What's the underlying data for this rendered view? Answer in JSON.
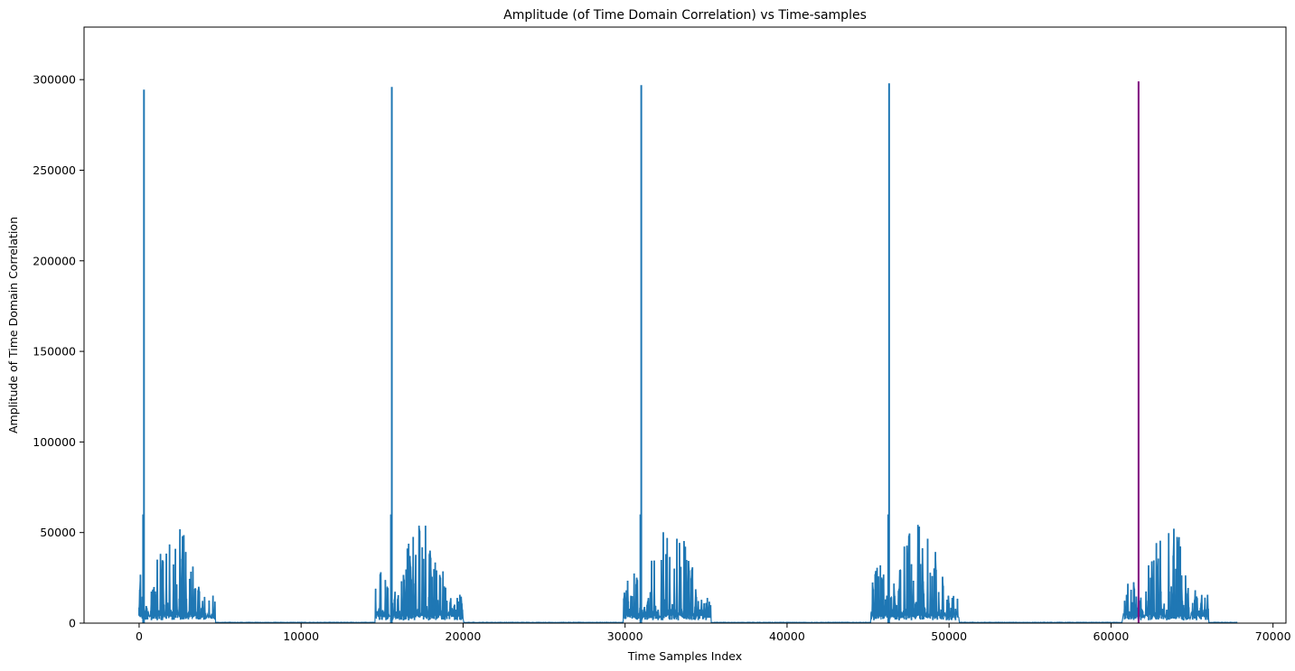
{
  "chart_data": {
    "type": "line",
    "title": "Amplitude (of Time Domain Correlation) vs Time-samples",
    "xlabel": "Time Samples Index",
    "ylabel": "Amplitude of Time Domain Correlation",
    "xlim": [
      -3400,
      70800
    ],
    "ylim": [
      0,
      329000
    ],
    "xticks": [
      0,
      10000,
      20000,
      30000,
      40000,
      50000,
      60000,
      70000
    ],
    "xtick_labels": [
      "0",
      "10000",
      "20000",
      "30000",
      "40000",
      "50000",
      "60000",
      "70000"
    ],
    "yticks": [
      0,
      50000,
      100000,
      150000,
      200000,
      250000,
      300000
    ],
    "ytick_labels": [
      "0",
      "50000",
      "100000",
      "150000",
      "200000",
      "250000",
      "300000"
    ],
    "grid": false,
    "legend": "none",
    "series": [
      {
        "color": "#1f77b4",
        "x_range": [
          0,
          67800
        ],
        "description_values": {
          "burst_starts": [
            0,
            14600,
            29900,
            45200,
            60700
          ],
          "burst_ends": [
            4700,
            20000,
            35300,
            50600,
            66000
          ],
          "burst_peak_amplitudes": [
            52500,
            52800,
            53000,
            53100,
            53200
          ],
          "pre_segment_peak": 30000,
          "noise_floor": 500
        },
        "peaks": [
          {
            "x": 300,
            "y": 294500
          },
          {
            "x": 15600,
            "y": 296000
          },
          {
            "x": 31000,
            "y": 297000
          },
          {
            "x": 46300,
            "y": 298000
          }
        ]
      },
      {
        "color": "#800080",
        "peaks": [
          {
            "x": 61700,
            "y": 299000
          }
        ]
      }
    ],
    "colors": {
      "main_series": "#1f77b4",
      "highlight_peak": "#800080"
    }
  }
}
